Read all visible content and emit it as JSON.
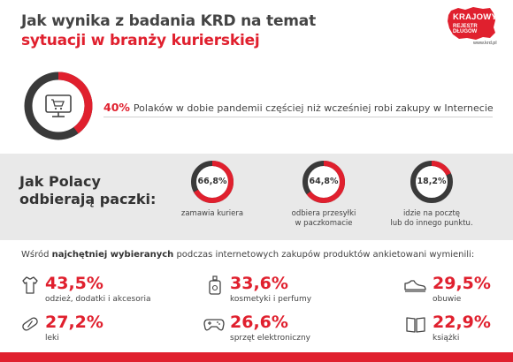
{
  "title": {
    "line1": "Jak wynika z badania KRD na temat",
    "line2": "sytuacji w branży kurierskiej"
  },
  "logo": {
    "line1": "KRAJOWY",
    "line2": "REJESTR DŁUGÓW",
    "url": "www.krd.pl"
  },
  "headline_stat": {
    "value": "40%",
    "text": "Polaków w dobie pandemii częściej niż wcześniej robi zakupy w Internecie",
    "icon": "shopping-cart-monitor-icon"
  },
  "pickup": {
    "heading_line1": "Jak Polacy",
    "heading_line2": "odbierają paczki:",
    "items": [
      {
        "value_label": "66,8%",
        "caption_line1": "zamawia kuriera",
        "caption_line2": ""
      },
      {
        "value_label": "64,8%",
        "caption_line1": "odbiera przesyłki",
        "caption_line2": "w paczkomacie"
      },
      {
        "value_label": "18,2%",
        "caption_line1": "idzie na pocztę",
        "caption_line2": "lub do innego punktu."
      }
    ]
  },
  "products": {
    "intro_pre": "Wśród ",
    "intro_bold": "najchętniej wybieranych",
    "intro_post": " podczas internetowych zakupów produktów ankietowani wymienili:",
    "items": [
      {
        "value_label": "43,5%",
        "label": "odzież, dodatki i akcesoria",
        "icon": "clothing-icon"
      },
      {
        "value_label": "33,6%",
        "label": "kosmetyki i perfumy",
        "icon": "perfume-icon"
      },
      {
        "value_label": "29,5%",
        "label": "obuwie",
        "icon": "shoe-icon"
      },
      {
        "value_label": "27,2%",
        "label": "leki",
        "icon": "pill-icon"
      },
      {
        "value_label": "26,6%",
        "label": "sprzęt elektroniczny",
        "icon": "gamepad-icon"
      },
      {
        "value_label": "22,9%",
        "label": "książki",
        "icon": "book-icon"
      }
    ]
  },
  "colors": {
    "accent": "#e0202e",
    "ring_track": "#3a3a3a",
    "band": "#e9e9e9",
    "text": "#444444"
  },
  "chart_data": [
    {
      "type": "pie",
      "categories": [
        "częściej robi zakupy w Internecie"
      ],
      "values": [
        40
      ]
    },
    {
      "type": "pie",
      "categories": [
        "zamawia kuriera",
        "odbiera przesyłki w paczkomacie",
        "idzie na pocztę lub do innego punktu."
      ],
      "values": [
        66.8,
        64.8,
        18.2
      ]
    },
    {
      "type": "bar",
      "categories": [
        "odzież, dodatki i akcesoria",
        "kosmetyki i perfumy",
        "obuwie",
        "leki",
        "sprzęt elektroniczny",
        "książki"
      ],
      "values": [
        43.5,
        33.6,
        29.5,
        27.2,
        26.6,
        22.9
      ]
    }
  ]
}
